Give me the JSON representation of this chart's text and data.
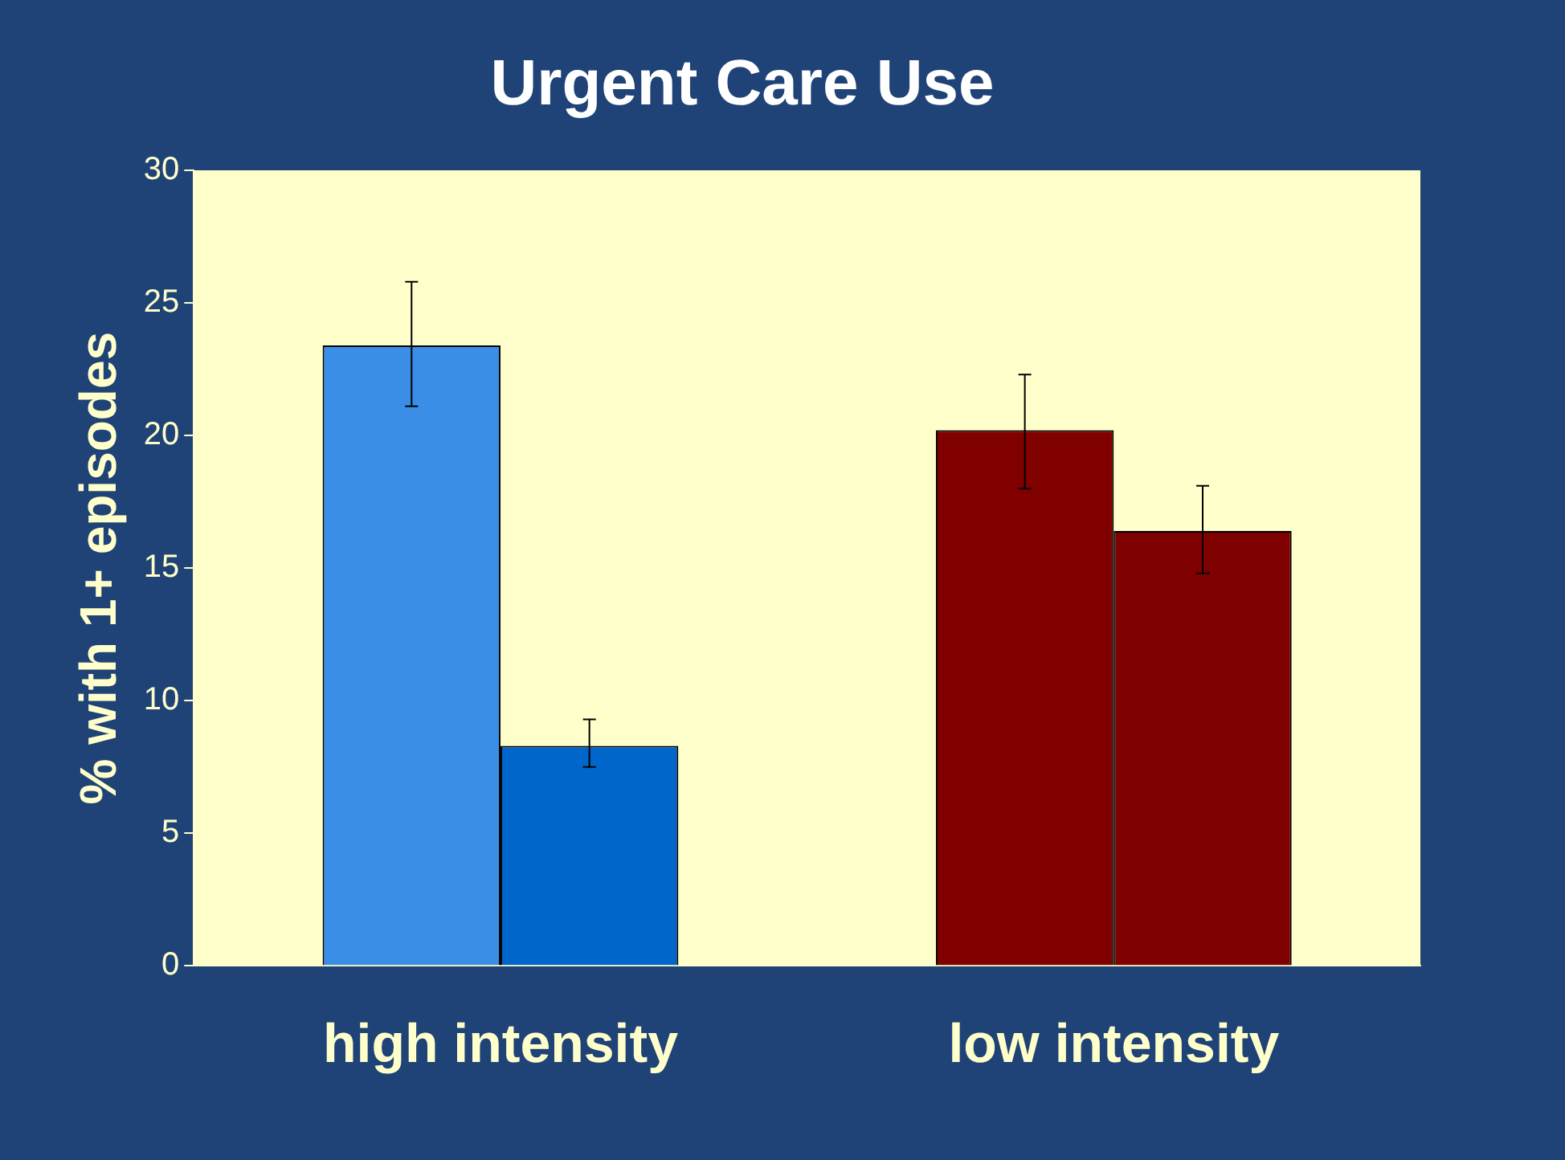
{
  "chart_data": {
    "type": "bar",
    "title": "Urgent Care Use",
    "ylabel": "% with 1+ episodes",
    "categories": [
      "high intensity",
      "low intensity"
    ],
    "series": [
      {
        "colors": [
          "#3a8ee6",
          "#800000"
        ],
        "values": [
          23.4,
          20.2
        ],
        "errors": [
          [
            21.1,
            25.8
          ],
          [
            18.0,
            22.3
          ]
        ]
      },
      {
        "colors": [
          "#0066cc",
          "#7f0000"
        ],
        "values": [
          8.3,
          16.4
        ],
        "errors": [
          [
            7.5,
            9.3
          ],
          [
            14.8,
            18.1
          ]
        ]
      }
    ],
    "ylim": [
      0,
      30
    ],
    "yticks": [
      0,
      5,
      10,
      15,
      20,
      25,
      30
    ],
    "grid": false,
    "legend": false
  }
}
